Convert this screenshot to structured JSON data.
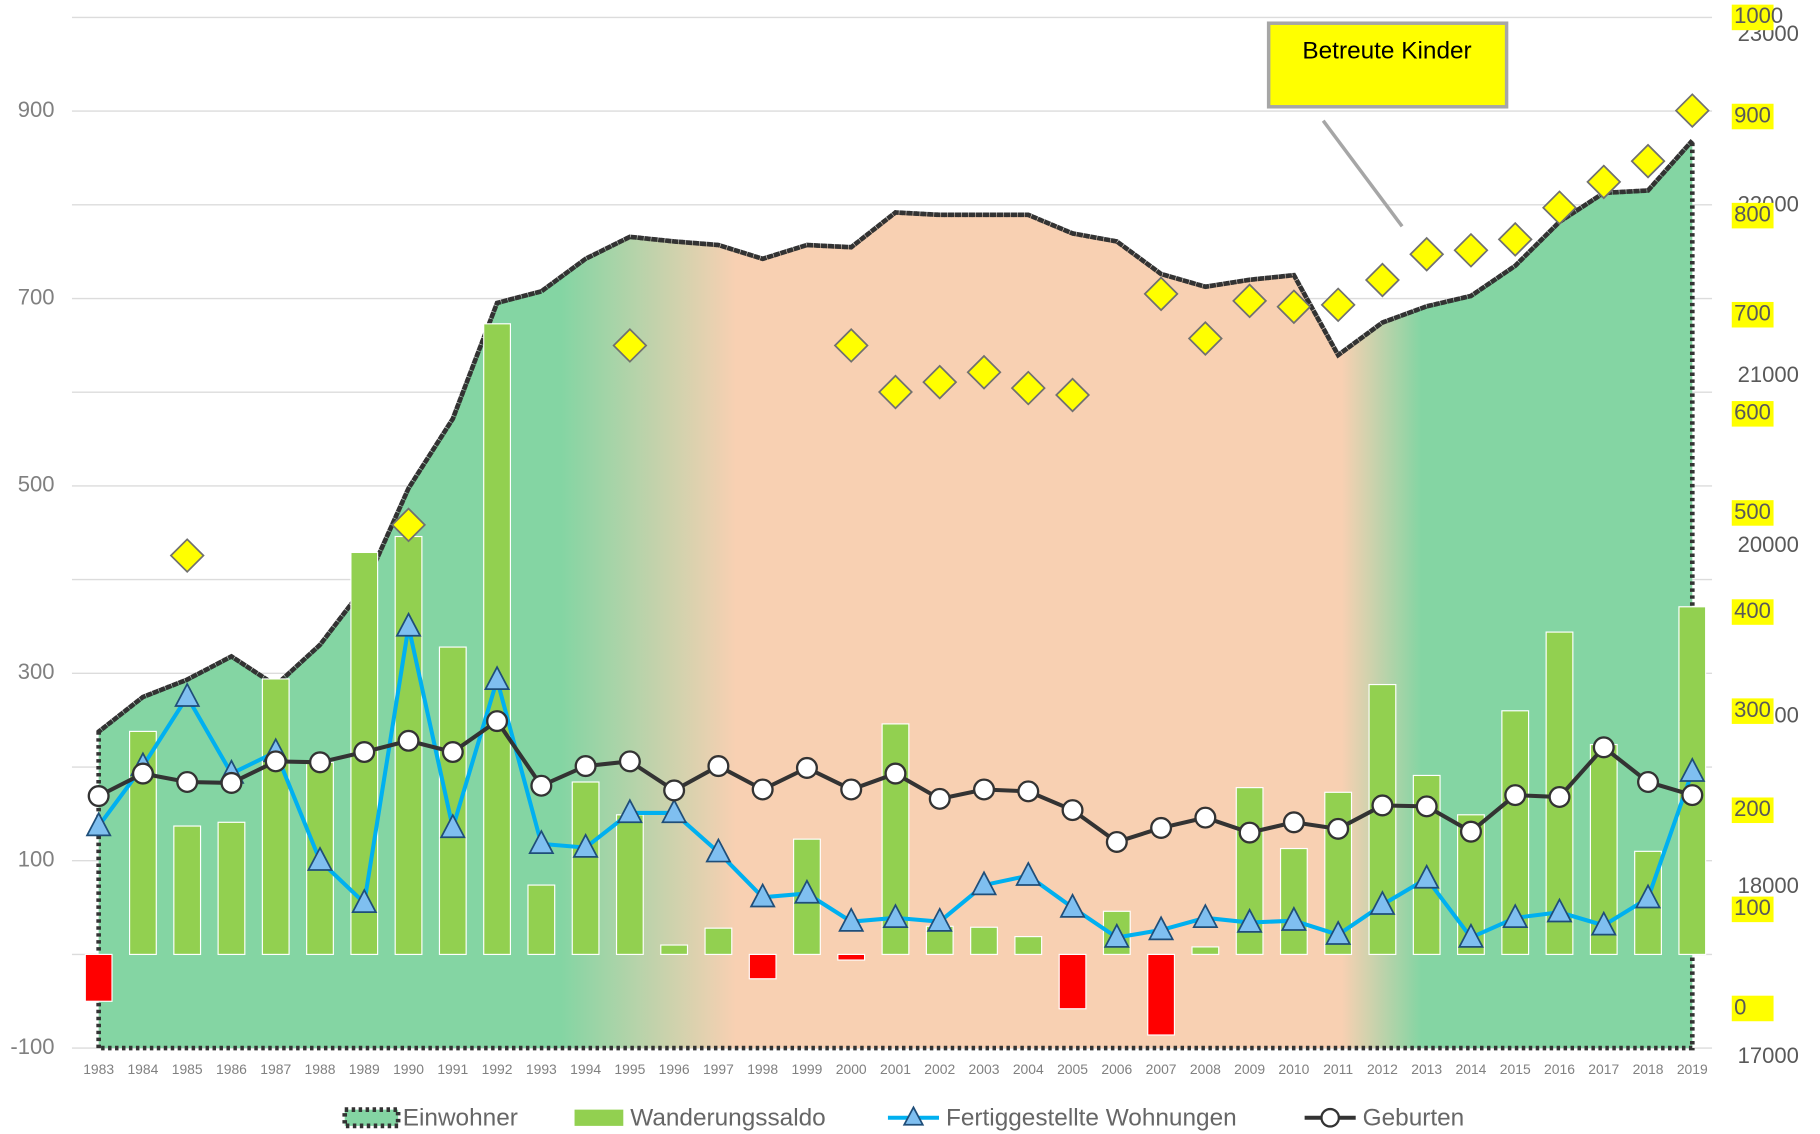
{
  "chart_data": {
    "type": "combo",
    "categories": [
      "1983",
      "1984",
      "1985",
      "1986",
      "1987",
      "1988",
      "1989",
      "1990",
      "1991",
      "1992",
      "1993",
      "1994",
      "1995",
      "1996",
      "1997",
      "1998",
      "1999",
      "2000",
      "2001",
      "2002",
      "2003",
      "2004",
      "2005",
      "2006",
      "2007",
      "2008",
      "2009",
      "2010",
      "2011",
      "2012",
      "2013",
      "2014",
      "2015",
      "2016",
      "2017",
      "2018",
      "2019"
    ],
    "ylim": [
      -100,
      1000
    ],
    "yticks": [
      -100,
      100,
      300,
      500,
      700,
      900
    ],
    "grid_yticks": [
      -100,
      0,
      100,
      200,
      300,
      400,
      500,
      600,
      700,
      800,
      900,
      1000
    ],
    "y2lim": [
      17000,
      23050
    ],
    "y2ticks": [
      17000,
      18000,
      19000,
      20000,
      21000,
      22000,
      23000
    ],
    "y3lim": [
      -40,
      1000
    ],
    "y3ticks": [
      0,
      100,
      200,
      300,
      400,
      500,
      600,
      700,
      800,
      900,
      1000
    ],
    "y3tick_color": "#ffff00",
    "grid": true,
    "legend": "bottom",
    "series": [
      {
        "name": "Einwohner",
        "type": "area",
        "axis": "y2",
        "color": "#84d5a3",
        "color2": "#f8d0b2",
        "line_color": "#333333",
        "values": [
          18857,
          19061,
          19163,
          19299,
          19129,
          19367,
          19707,
          20286,
          20694,
          21374,
          21442,
          21633,
          21762,
          21735,
          21714,
          21633,
          21714,
          21701,
          21905,
          21891,
          21891,
          21891,
          21782,
          21735,
          21544,
          21469,
          21510,
          21537,
          21068,
          21259,
          21354,
          21415,
          21592,
          21850,
          22020,
          22034,
          22327
        ]
      },
      {
        "name": "Wanderungssaldo",
        "type": "bar",
        "axis": "y",
        "color": "#92d050",
        "negative_color": "#ff0000",
        "values": [
          -50,
          238,
          137,
          141,
          294,
          205,
          429,
          446,
          328,
          673,
          74,
          184,
          149,
          10,
          28,
          -26,
          123,
          -6,
          246,
          30,
          29,
          19,
          -58,
          46,
          -86,
          8,
          178,
          113,
          173,
          288,
          191,
          149,
          260,
          344,
          224,
          110,
          371
        ]
      },
      {
        "name": "Fertiggestellte Wohnungen",
        "type": "line",
        "axis": "y",
        "color": "#00b0f0",
        "marker": "triangle",
        "marker_color": "#7fbff0",
        "values": [
          137,
          201,
          275,
          193,
          216,
          100,
          55,
          350,
          135,
          293,
          118,
          114,
          151,
          151,
          109,
          61,
          65,
          35,
          39,
          35,
          74,
          84,
          50,
          18,
          26,
          39,
          34,
          36,
          21,
          53,
          81,
          18,
          39,
          45,
          31,
          60,
          195
        ]
      },
      {
        "name": "Geburten",
        "type": "line",
        "axis": "y",
        "color": "#333333",
        "marker": "circle",
        "marker_color": "#ffffff",
        "values": [
          169,
          193,
          184,
          183,
          206,
          205,
          216,
          228,
          216,
          249,
          180,
          201,
          206,
          175,
          201,
          176,
          199,
          176,
          193,
          166,
          176,
          174,
          154,
          120,
          135,
          146,
          130,
          141,
          134,
          159,
          158,
          131,
          170,
          168,
          221,
          184,
          170
        ]
      },
      {
        "name": "Betreute Kinder",
        "type": "scatter",
        "axis": "y3",
        "color": "#ffff00",
        "marker": "diamond",
        "legend": false,
        "values": [
          null,
          null,
          457,
          null,
          null,
          null,
          null,
          488,
          null,
          null,
          null,
          null,
          669,
          null,
          null,
          null,
          null,
          669,
          622,
          632,
          642,
          626,
          619,
          null,
          721,
          676,
          714,
          708,
          710,
          735,
          761,
          765,
          776,
          808,
          834,
          855,
          906
        ]
      }
    ]
  }
}
